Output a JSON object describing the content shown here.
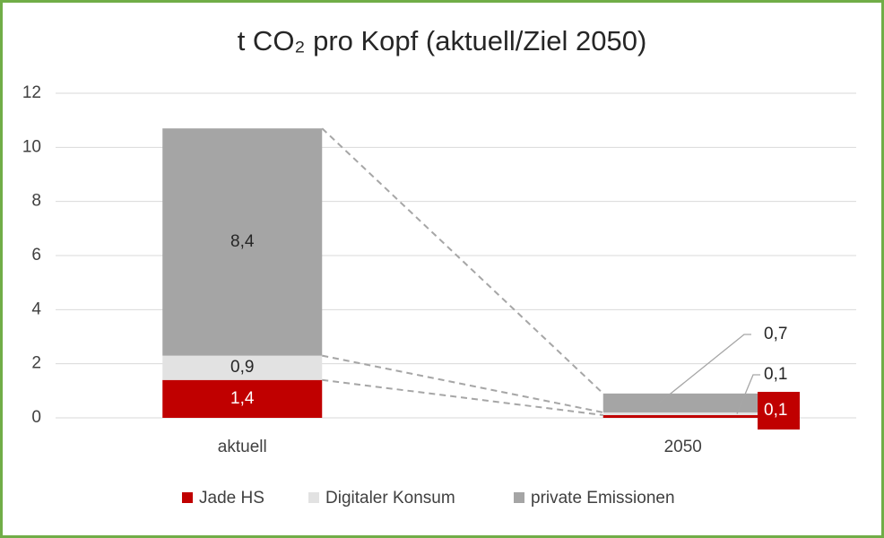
{
  "chart_data": {
    "type": "stacked_bar",
    "title": "t CO₂ pro Kopf (aktuell/Ziel 2050)",
    "categories": [
      "aktuell",
      "2050"
    ],
    "series": [
      {
        "name": "Jade HS",
        "color": "#c00000",
        "values": [
          1.4,
          0.1
        ],
        "value_labels": [
          "1,4",
          "0,1"
        ]
      },
      {
        "name": "Digitaler Konsum",
        "color": "#e2e2e2",
        "values": [
          0.9,
          0.1
        ],
        "value_labels": [
          "0,9",
          "0,1"
        ]
      },
      {
        "name": "private Emissionen",
        "color": "#a5a5a5",
        "values": [
          8.4,
          0.7
        ],
        "value_labels": [
          "8,4",
          "0,7"
        ]
      }
    ],
    "ylim": [
      0,
      12
    ],
    "yticks": [
      0,
      2,
      4,
      6,
      8,
      10,
      12
    ],
    "grid": true,
    "legend": "bottom"
  }
}
